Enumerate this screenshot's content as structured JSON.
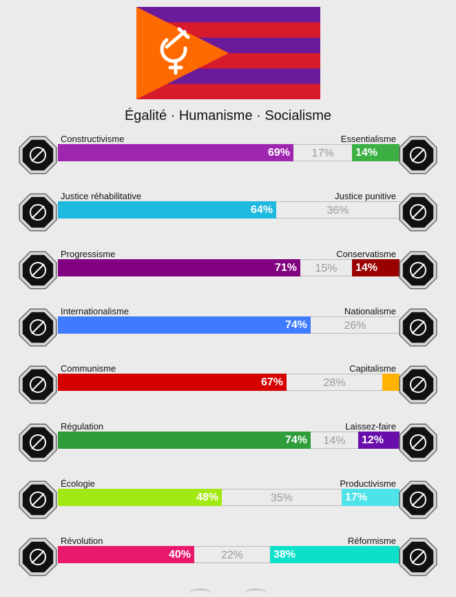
{
  "flag": {
    "stripe_colors": [
      "#6a1b9a",
      "#d81b2c",
      "#6a1b9a",
      "#d81b2c",
      "#6a1b9a",
      "#d81b2c"
    ],
    "triangle_color": "#ff6a00",
    "emblem": "hammer-sickle-venus-icon"
  },
  "motto": "Égalité · Humanisme · Socialisme",
  "axes": [
    {
      "left_label": "Constructivisme",
      "right_label": "Essentialisme",
      "left_pct": 69,
      "mid_pct": 17,
      "right_pct": 14,
      "left_text": "69%",
      "mid_text": "17%",
      "right_text": "14%",
      "left_color": "#9f27b0",
      "right_color": "#3cb043",
      "left_icon": "brain-web-icon",
      "right_icon": "dna-flower-icon"
    },
    {
      "left_label": "Justice réhabilitative",
      "right_label": "Justice punitive",
      "left_pct": 64,
      "mid_pct": 36,
      "right_pct": 0,
      "left_text": "64%",
      "mid_text": "36%",
      "right_text": "",
      "left_color": "#1eb9de",
      "right_color": "#2a4bbd",
      "left_icon": "handshake-icon",
      "right_icon": "prison-bars-icon"
    },
    {
      "left_label": "Progressisme",
      "right_label": "Conservatisme",
      "left_pct": 71,
      "mid_pct": 15,
      "right_pct": 14,
      "left_text": "71%",
      "mid_text": "15%",
      "right_text": "14%",
      "left_color": "#800080",
      "right_color": "#9b0000",
      "left_icon": "rocket-icon",
      "right_icon": "quill-ink-icon"
    },
    {
      "left_label": "Internationalisme",
      "right_label": "Nationalisme",
      "left_pct": 74,
      "mid_pct": 26,
      "right_pct": 0,
      "left_text": "74%",
      "mid_text": "26%",
      "right_text": "",
      "left_color": "#3f7bff",
      "right_color": "#ff8c00",
      "left_icon": "globe-laurel-icon",
      "right_icon": "flag-waving-icon"
    },
    {
      "left_label": "Communisme",
      "right_label": "Capitalisme",
      "left_pct": 67,
      "mid_pct": 28,
      "right_pct": 5,
      "left_text": "67%",
      "mid_text": "28%",
      "right_text": "",
      "left_color": "#d50000",
      "right_color": "#ffb300",
      "left_icon": "hammer-sickle-icon",
      "right_icon": "money-bag-icon"
    },
    {
      "left_label": "Régulation",
      "right_label": "Laissez-faire",
      "left_pct": 74,
      "mid_pct": 14,
      "right_pct": 12,
      "left_text": "74%",
      "mid_text": "14%",
      "right_text": "12%",
      "left_color": "#2e9d3a",
      "right_color": "#6a0dad",
      "left_icon": "ruler-shapes-icon",
      "right_icon": "butterflies-icon"
    },
    {
      "left_label": "Écologie",
      "right_label": "Productivisme",
      "left_pct": 48,
      "mid_pct": 35,
      "right_pct": 17,
      "left_text": "48%",
      "mid_text": "35%",
      "right_text": "17%",
      "left_color": "#a2e812",
      "right_color": "#4de3e8",
      "left_icon": "sprout-hand-icon",
      "right_icon": "gear-factory-icon"
    },
    {
      "left_label": "Révolution",
      "right_label": "Réformisme",
      "left_pct": 40,
      "mid_pct": 22,
      "right_pct": 38,
      "left_text": "40%",
      "mid_text": "22%",
      "right_text": "38%",
      "left_color": "#e8196b",
      "right_color": "#0de0c8",
      "left_icon": "raised-fist-icon",
      "right_icon": "parliament-icon"
    }
  ]
}
